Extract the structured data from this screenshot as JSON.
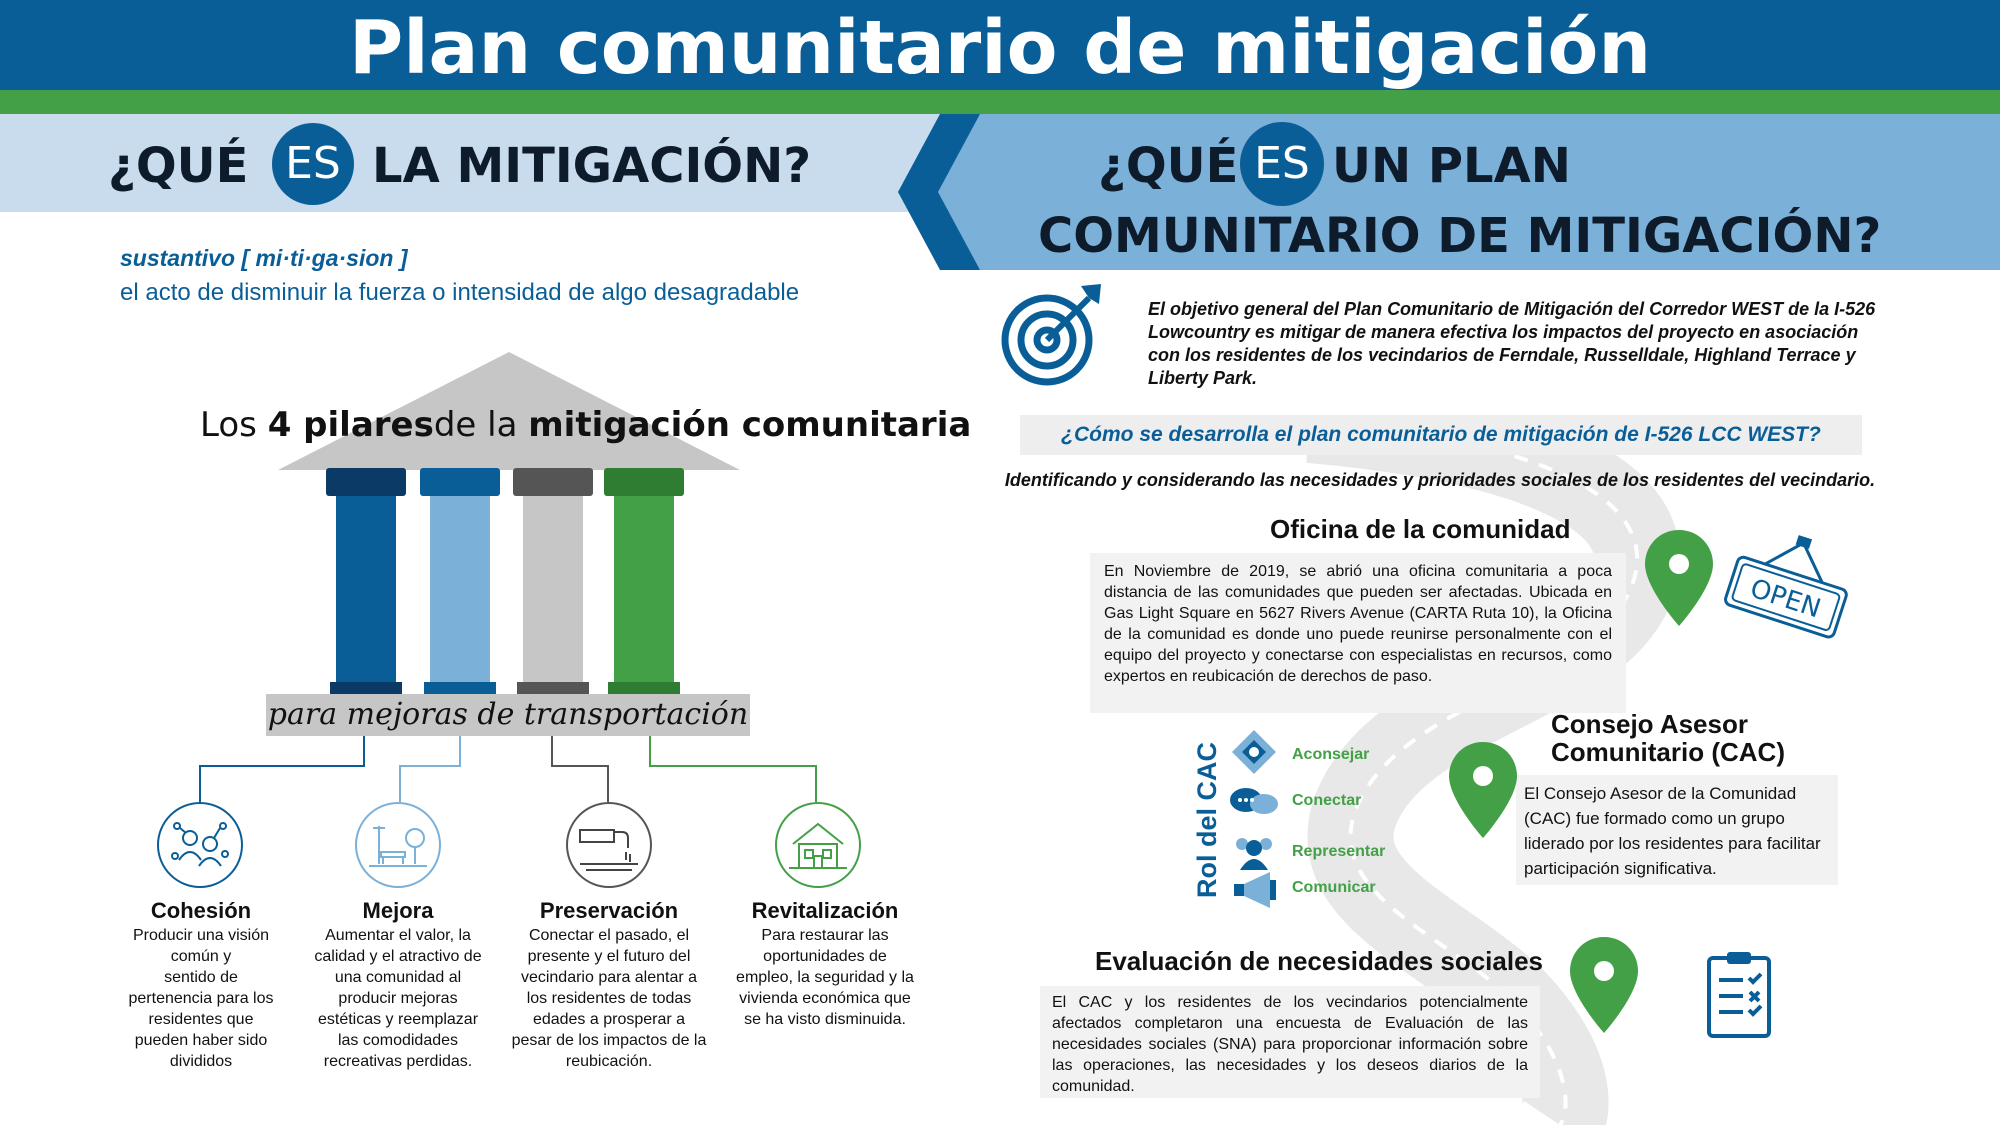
{
  "header": {
    "title": "Plan comunitario de mitigación"
  },
  "left": {
    "question": {
      "part1": "¿QUÉ",
      "es": "ES",
      "part2": "LA MITIGACIÓN?"
    },
    "definition": {
      "label": "sustantivo [ mi·ti·ga·sion ]",
      "text": "el acto de disminuir la fuerza o intensidad de algo desagradable"
    },
    "pillars_title": {
      "pre": "Los",
      "bold1": "4 pilares",
      "mid": "de la",
      "bold2": "mitigación comunitaria"
    },
    "subtitle": "para mejoras de transportación",
    "colors": {
      "dark_blue": "#0a5e98",
      "light_blue": "#7bb0d8",
      "gray": "#c6c6c6",
      "green": "#43a047"
    },
    "pillars": [
      {
        "name": "Cohesión",
        "icon": "people-network-icon",
        "color": "#0a5e98",
        "lines": [
          "Producir una visión",
          "común y",
          "sentido de",
          "pertenencia para los",
          "residentes que",
          "pueden haber sido",
          "divididos"
        ]
      },
      {
        "name": "Mejora",
        "icon": "park-bench-icon",
        "color": "#7bb0d8",
        "lines": [
          "Aumentar el valor, la",
          "calidad y el atractivo de",
          "una comunidad al",
          "producir mejoras",
          "estéticas y reemplazar",
          "las comodidades",
          "recreativas perdidas."
        ]
      },
      {
        "name": "Preservación",
        "icon": "pipe-water-icon",
        "color": "#555555",
        "lines": [
          "Conectar el pasado, el",
          "presente y el futuro del",
          "vecindario para alentar a",
          "los residentes de todas",
          "edades a prosperar a",
          "pesar de los impactos de la",
          "reubicación."
        ]
      },
      {
        "name": "Revitalización",
        "icon": "house-icon",
        "color": "#43a047",
        "lines": [
          "Para restaurar las",
          "oportunidades de",
          "empleo, la seguridad y la",
          "vivienda económica que",
          "se ha visto disminuida."
        ]
      }
    ]
  },
  "right": {
    "question": {
      "part1": "¿QUÉ",
      "es": "ES",
      "part2": "UN PLAN",
      "line2": "COMUNITARIO DE MITIGACIÓN?"
    },
    "objective": "El objetivo general del Plan Comunitario de Mitigación del Corredor WEST de la I-526 Lowcountry es mitigar de manera efectiva los impactos del proyecto en asociación con los residentes de los vecindarios de Ferndale, Russelldale, Highland Terrace y Liberty Park.",
    "how_question": "¿Cómo se desarrolla el plan comunitario de mitigación de I-526 LCC WEST?",
    "how_answer": "Identificando y considerando las necesidades y prioridades sociales de los residentes del vecindario.",
    "office": {
      "title": "Oficina de la comunidad",
      "text": "En Noviembre de 2019, se abrió una oficina comunitaria a poca distancia de las comunidades que pueden ser afectadas. Ubicada en Gas Light Square en 5627 Rivers Avenue (CARTA Ruta 10), la Oficina de la comunidad es donde uno puede reunirse personalmente con el equipo del proyecto y conectarse con especialistas en recursos, como expertos en reubicación de derechos de paso.",
      "sign": "OPEN"
    },
    "cac": {
      "title1": "Consejo Asesor",
      "title2": "Comunitario (CAC)",
      "text": "El Consejo Asesor de la Comunidad (CAC) fue formado como un grupo liderado por los residentes para facilitar participación significativa.",
      "role_label": "Rol del CAC",
      "roles": [
        "Aconsejar",
        "Conectar",
        "Representar",
        "Comunicar"
      ]
    },
    "sna": {
      "title": "Evaluación de necesidades sociales",
      "text": "El CAC y los residentes de los vecindarios potencialmente afectados completaron una encuesta de Evaluación de las necesidades sociales (SNA) para proporcionar información sobre las operaciones, las necesidades y los deseos diarios de la comunidad."
    }
  }
}
